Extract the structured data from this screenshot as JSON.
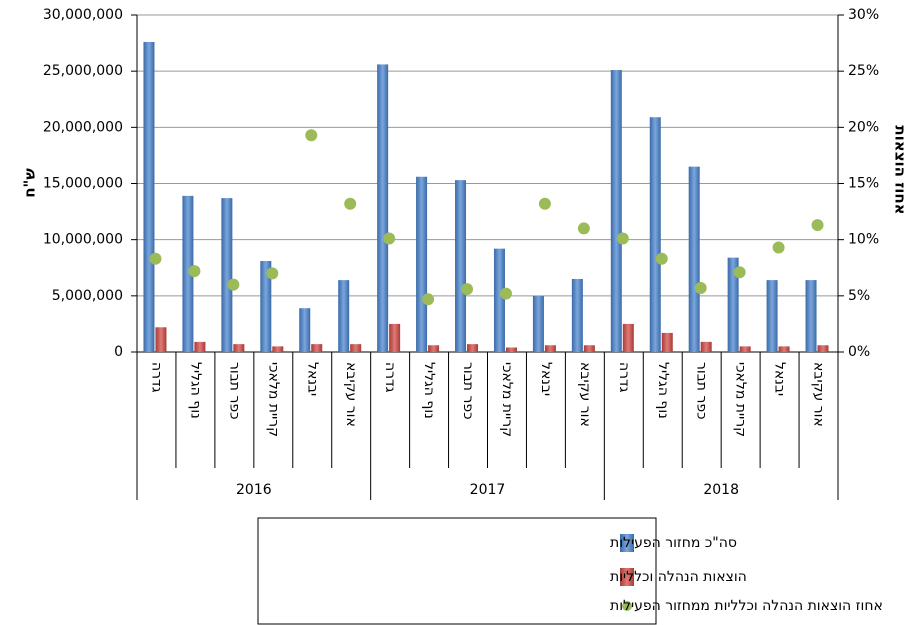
{
  "chart_data": {
    "type": "bar",
    "y_label": "ש\"ח",
    "y2_label": "אחוז הוצאות",
    "categories": [
      "גדרה",
      "נוף הגליל",
      "כפר תבור",
      "קריית מלאכי",
      "יבנאל",
      "אור עקיבא",
      "גדרה",
      "נוף הגליל",
      "כפר תבור",
      "קריית מלאכי",
      "יבנאל",
      "אור עקיבא",
      "גדרה",
      "נוף הגליל",
      "כפר תבור",
      "קריית מלאכי",
      "יבנאל",
      "אור עקיבא"
    ],
    "group_labels": [
      "2016",
      "2017",
      "2018"
    ],
    "series": [
      {
        "name": "סה\"כ מחזור הפעילות",
        "color": "#4f81bd",
        "values": [
          27600000,
          13900000,
          13700000,
          8100000,
          3900000,
          6400000,
          25600000,
          15600000,
          15300000,
          9200000,
          5000000,
          6500000,
          25100000,
          20900000,
          16500000,
          8400000,
          6400000,
          6400000
        ]
      },
      {
        "name": "הוצאות הנהלה וכלליות",
        "color": "#c0504d",
        "values": [
          2200000,
          900000,
          700000,
          500000,
          700000,
          700000,
          2500000,
          600000,
          700000,
          400000,
          600000,
          600000,
          2500000,
          1700000,
          900000,
          500000,
          500000,
          600000
        ]
      },
      {
        "name": "אחוז הוצאות הנהלה וכלליות ממחזור הפעילות",
        "color": "#9bbb59",
        "type": "scatter",
        "axis": "y2",
        "values": [
          8.3,
          7.2,
          6.0,
          7.0,
          19.3,
          13.2,
          10.1,
          4.7,
          5.6,
          5.2,
          13.2,
          11.0,
          10.1,
          8.3,
          5.7,
          7.1,
          9.3,
          11.3
        ]
      }
    ],
    "ylim": [
      0,
      30000000
    ],
    "yticks": [
      0,
      {
        "value": 5000000,
        "label": "5,000,000"
      },
      {
        "value": 10000000,
        "label": "10,000,000"
      },
      {
        "value": 15000000,
        "label": "15,000,000"
      },
      {
        "value": 20000000,
        "label": "20,000,000"
      },
      {
        "value": 25000000,
        "label": "25,000,000"
      },
      {
        "value": 30000000,
        "label": "30,000,000"
      }
    ],
    "y2lim": [
      0,
      30
    ],
    "y2ticks": [
      {
        "value": 0,
        "label": "0%"
      },
      {
        "value": 5,
        "label": "5%"
      },
      {
        "value": 10,
        "label": "10%"
      },
      {
        "value": 15,
        "label": "15%"
      },
      {
        "value": 20,
        "label": "20%"
      },
      {
        "value": 25,
        "label": "25%"
      },
      {
        "value": 30,
        "label": "30%"
      }
    ],
    "grid": true,
    "legend": "bottom"
  }
}
